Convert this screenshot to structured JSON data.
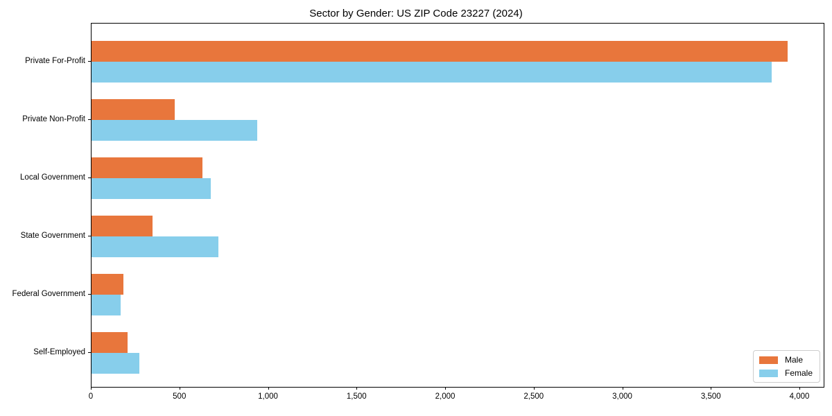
{
  "chart_data": {
    "type": "bar",
    "orientation": "horizontal",
    "title": "Sector by Gender: US ZIP Code 23227 (2024)",
    "categories": [
      "Private For-Profit",
      "Private Non-Profit",
      "Local Government",
      "State Government",
      "Federal Government",
      "Self-Employed"
    ],
    "series": [
      {
        "name": "Male",
        "color": "#E8763C",
        "values": [
          3930,
          470,
          625,
          345,
          180,
          205
        ]
      },
      {
        "name": "Female",
        "color": "#87CEEB",
        "values": [
          3840,
          935,
          675,
          715,
          165,
          270
        ]
      }
    ],
    "xlabel": "",
    "ylabel": "",
    "xlim": [
      0,
      4133
    ],
    "x_ticks": [
      0,
      500,
      1000,
      1500,
      2000,
      2500,
      3000,
      3500,
      4000
    ],
    "x_tick_labels": [
      "0",
      "500",
      "1,000",
      "1,500",
      "2,000",
      "2,500",
      "3,000",
      "3,500",
      "4,000"
    ],
    "grid": false,
    "legend_position": "lower right",
    "spine_color": "#000000",
    "background_color": "#ffffff"
  }
}
